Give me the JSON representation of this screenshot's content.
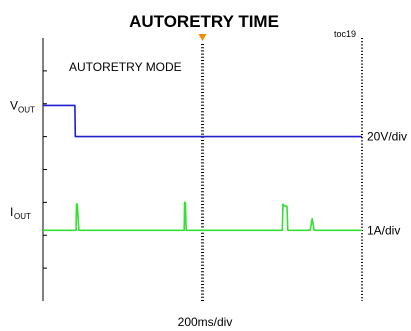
{
  "chart_data": {
    "type": "line",
    "title": "AUTORETRY TIME",
    "figure_id": "toc19",
    "annotation": "AUTORETRY MODE",
    "xlabel": "200ms/div",
    "x_divisions": 8,
    "trigger_division": 4,
    "colors": {
      "vout": "#1f1fd0",
      "iout": "#33e033",
      "trigger": "#f08c00",
      "grid": "#000000"
    },
    "series": [
      {
        "name": "V",
        "subscript": "OUT",
        "scale": "20V/div",
        "baseline_div": 5.0,
        "points": [
          [
            0.0,
            5.95
          ],
          [
            0.8,
            5.95
          ],
          [
            0.81,
            5.0
          ],
          [
            8.0,
            5.0
          ]
        ]
      },
      {
        "name": "I",
        "subscript": "OUT",
        "scale": "1A/div",
        "baseline_div": 2.15,
        "points": [
          [
            0.0,
            2.15
          ],
          [
            0.83,
            2.15
          ],
          [
            0.84,
            2.95
          ],
          [
            0.86,
            2.95
          ],
          [
            0.9,
            2.15
          ],
          [
            3.54,
            2.15
          ],
          [
            3.55,
            3.0
          ],
          [
            3.57,
            3.0
          ],
          [
            3.59,
            2.15
          ],
          [
            6.0,
            2.15
          ],
          [
            6.02,
            2.95
          ],
          [
            6.05,
            2.9
          ],
          [
            6.1,
            2.88
          ],
          [
            6.12,
            2.88
          ],
          [
            6.14,
            2.15
          ],
          [
            6.7,
            2.15
          ],
          [
            6.75,
            2.5
          ],
          [
            6.8,
            2.15
          ],
          [
            8.0,
            2.15
          ]
        ]
      }
    ]
  }
}
